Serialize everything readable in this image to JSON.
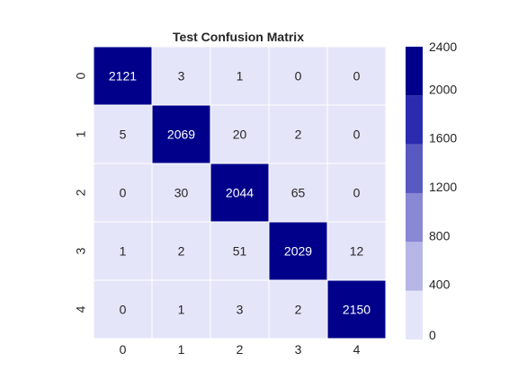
{
  "chart_data": {
    "type": "heatmap",
    "title": "Test Confusion Matrix",
    "xlabel": "",
    "ylabel": "",
    "x_categories": [
      "0",
      "1",
      "2",
      "3",
      "4"
    ],
    "y_categories": [
      "0",
      "1",
      "2",
      "3",
      "4"
    ],
    "matrix": [
      [
        2121,
        3,
        1,
        0,
        0
      ],
      [
        5,
        2069,
        20,
        2,
        0
      ],
      [
        0,
        30,
        2044,
        65,
        0
      ],
      [
        1,
        2,
        51,
        2029,
        12
      ],
      [
        0,
        1,
        3,
        2,
        2150
      ]
    ],
    "colorbar": {
      "ticks": [
        0,
        400,
        800,
        1200,
        1600,
        2000,
        2400
      ],
      "range": [
        0,
        2400
      ],
      "bins": 6,
      "colors": [
        "#e5e5fa",
        "#b6b6e7",
        "#8888d5",
        "#5959c2",
        "#2b2bb0",
        "#00008b"
      ]
    },
    "label_colors": {
      "dark": "#262626",
      "light": "#ffffff"
    }
  }
}
